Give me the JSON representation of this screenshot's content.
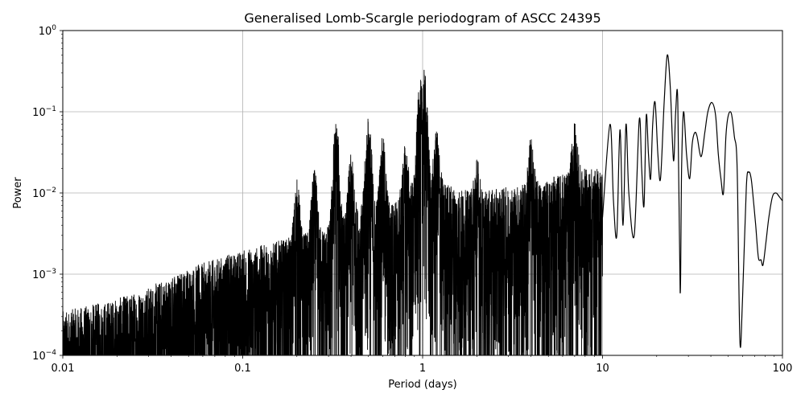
{
  "chart_data": {
    "type": "line",
    "title": "Generalised Lomb-Scargle periodogram of ASCC 24395",
    "xlabel": "Period (days)",
    "ylabel": "Power",
    "xscale": "log",
    "yscale": "log",
    "xlim": [
      0.01,
      100
    ],
    "ylim": [
      0.0001,
      1
    ],
    "grid": true,
    "line_color": "#000000",
    "x_ticks": [
      {
        "value": 0.01,
        "label": "0.01"
      },
      {
        "value": 0.1,
        "label": "0.1"
      },
      {
        "value": 1,
        "label": "1"
      },
      {
        "value": 10,
        "label": "10"
      },
      {
        "value": 100,
        "label": "100"
      }
    ],
    "y_ticks": [
      {
        "value": 0.0001,
        "base": "10",
        "exp": "−4"
      },
      {
        "value": 0.001,
        "base": "10",
        "exp": "−3"
      },
      {
        "value": 0.01,
        "base": "10",
        "exp": "−2"
      },
      {
        "value": 0.1,
        "base": "10",
        "exp": "−1"
      },
      {
        "value": 1,
        "base": "10",
        "exp": "0"
      }
    ],
    "series": [
      {
        "x": [
          10,
          11,
          11.5,
          12,
          12.5,
          13,
          13.5,
          14,
          15,
          16,
          16.5,
          17,
          17.5,
          18,
          18.5,
          19,
          19.6,
          20.3,
          21,
          22,
          22.9,
          23.8,
          24.8,
          25.5,
          26.2,
          27,
          27.5,
          28.2,
          29.3,
          30.5,
          31.5,
          32.5,
          33.5,
          35.3,
          37,
          38.5,
          40.5,
          42.5,
          44,
          45.5,
          47,
          48.5,
          50,
          52,
          54,
          56,
          58,
          60,
          63,
          65,
          67,
          69,
          71,
          73.5,
          76,
          78,
          81,
          84,
          88,
          92,
          96,
          100
        ],
        "y": [
          0.005,
          0.07,
          0.008,
          0.003,
          0.06,
          0.004,
          0.07,
          0.01,
          0.003,
          0.08,
          0.02,
          0.007,
          0.09,
          0.03,
          0.015,
          0.07,
          0.13,
          0.03,
          0.015,
          0.13,
          0.5,
          0.2,
          0.025,
          0.1,
          0.13,
          0.0006,
          0.02,
          0.1,
          0.03,
          0.015,
          0.04,
          0.055,
          0.05,
          0.028,
          0.055,
          0.1,
          0.13,
          0.09,
          0.03,
          0.015,
          0.01,
          0.05,
          0.09,
          0.095,
          0.05,
          0.02,
          0.00015,
          0.0005,
          0.012,
          0.018,
          0.015,
          0.008,
          0.004,
          0.0016,
          0.0015,
          0.0013,
          0.0025,
          0.005,
          0.009,
          0.01,
          0.009,
          0.008
        ]
      }
    ],
    "noise_envelope": [
      {
        "x": 0.01,
        "y": 0.00035
      },
      {
        "x": 0.02,
        "y": 0.0005
      },
      {
        "x": 0.03,
        "y": 0.0007
      },
      {
        "x": 0.05,
        "y": 0.0012
      },
      {
        "x": 0.1,
        "y": 0.002
      },
      {
        "x": 0.15,
        "y": 0.0025
      },
      {
        "x": 0.2,
        "y": 0.003
      },
      {
        "x": 0.3,
        "y": 0.004
      },
      {
        "x": 0.5,
        "y": 0.008
      },
      {
        "x": 0.7,
        "y": 0.008
      },
      {
        "x": 1,
        "y": 0.02
      },
      {
        "x": 1.5,
        "y": 0.012
      },
      {
        "x": 2,
        "y": 0.01
      },
      {
        "x": 3,
        "y": 0.012
      },
      {
        "x": 5,
        "y": 0.015
      },
      {
        "x": 7,
        "y": 0.02
      },
      {
        "x": 10,
        "y": 0.02
      }
    ],
    "peaks": [
      {
        "x": 0.2,
        "y": 0.015
      },
      {
        "x": 0.25,
        "y": 0.02
      },
      {
        "x": 0.33,
        "y": 0.08
      },
      {
        "x": 0.4,
        "y": 0.03
      },
      {
        "x": 0.5,
        "y": 0.09
      },
      {
        "x": 0.6,
        "y": 0.05
      },
      {
        "x": 0.8,
        "y": 0.04
      },
      {
        "x": 0.97,
        "y": 0.25
      },
      {
        "x": 1.02,
        "y": 0.33
      },
      {
        "x": 1.2,
        "y": 0.06
      },
      {
        "x": 2,
        "y": 0.03
      },
      {
        "x": 4,
        "y": 0.05
      },
      {
        "x": 7,
        "y": 0.08
      }
    ]
  }
}
